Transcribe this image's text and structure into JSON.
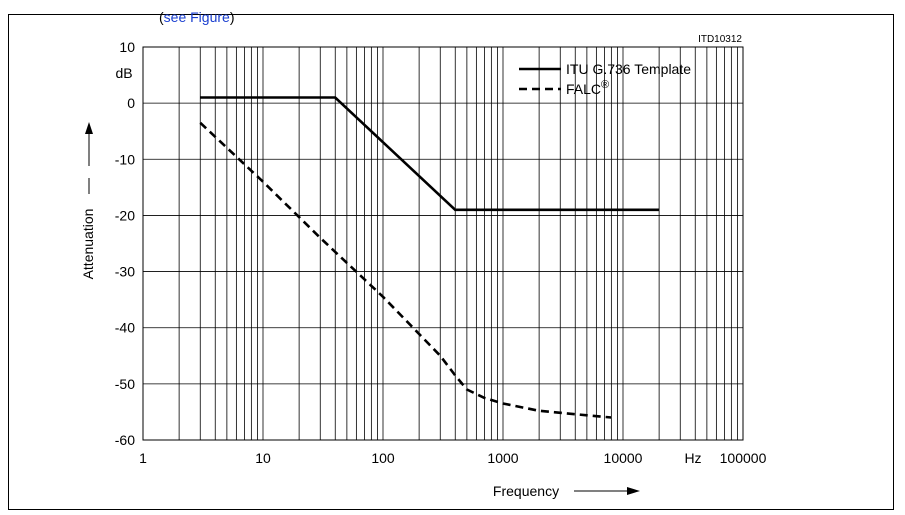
{
  "caption_fragment": {
    "open": "(",
    "link": "see Figure",
    "close": ")"
  },
  "chart_data": {
    "type": "line",
    "figure_id": "ITD10312",
    "xlabel": "Frequency",
    "x_unit": "Hz",
    "ylabel": "Attenuation",
    "y_unit": "dB",
    "xscale": "log",
    "xlim": [
      1,
      100000
    ],
    "ylim": [
      -60,
      10
    ],
    "x_ticks": [
      1,
      10,
      100,
      1000,
      10000,
      100000
    ],
    "x_tick_labels": [
      "1",
      "10",
      "100",
      "1000",
      "10000",
      "100000"
    ],
    "y_ticks": [
      10,
      0,
      -10,
      -20,
      -30,
      -40,
      -50,
      -60
    ],
    "y_tick_labels": [
      "10",
      "0",
      "-10",
      "-20",
      "-30",
      "-40",
      "-50",
      "-60"
    ],
    "grid": true,
    "legend_position": "top-right",
    "series": [
      {
        "name": "ITU G.736 Template",
        "style": "solid",
        "x": [
          3,
          40,
          400,
          20000
        ],
        "y": [
          1,
          1,
          -19,
          -19
        ]
      },
      {
        "name": "FALC",
        "name_superscript": "®",
        "style": "dashed",
        "x": [
          3,
          10,
          30,
          100,
          300,
          400,
          500,
          700,
          1000,
          2000,
          5000,
          8000
        ],
        "y": [
          -3.5,
          -14,
          -24,
          -34.5,
          -45,
          -48.5,
          -51,
          -52.5,
          -53.5,
          -54.8,
          -55.6,
          -56
        ]
      }
    ],
    "colors": {
      "lines": "#000000",
      "grid": "#000000"
    }
  }
}
